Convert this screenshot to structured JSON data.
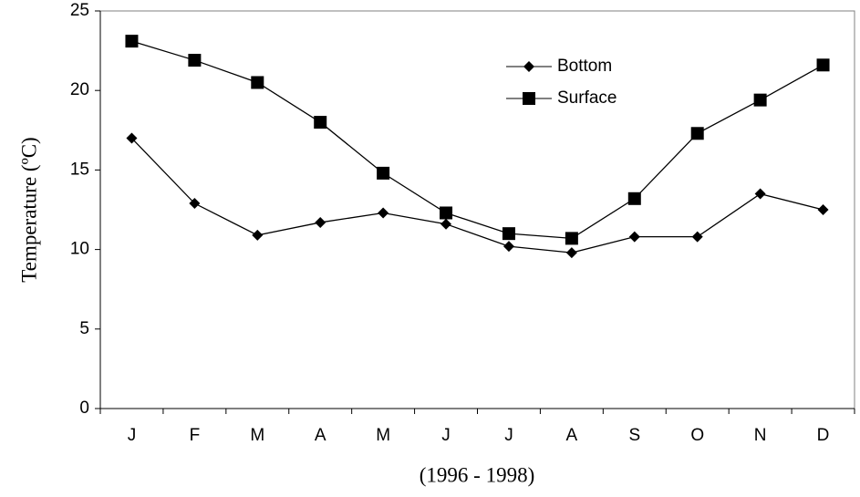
{
  "chart_data": {
    "type": "line",
    "xlabel": "(1996 - 1998)",
    "ylabel": "Temperature (ºC)",
    "categories": [
      "J",
      "F",
      "M",
      "A",
      "M",
      "J",
      "J",
      "A",
      "S",
      "O",
      "N",
      "D"
    ],
    "series": [
      {
        "name": "Bottom",
        "color": "#000000",
        "marker": "diamond",
        "values": [
          17.0,
          12.9,
          10.9,
          11.7,
          12.3,
          11.6,
          10.2,
          9.8,
          10.8,
          10.8,
          13.5,
          12.5
        ]
      },
      {
        "name": "Surface",
        "color": "#000000",
        "marker": "square",
        "values": [
          23.1,
          21.9,
          20.5,
          18.0,
          14.8,
          12.3,
          11.0,
          10.7,
          13.2,
          17.3,
          19.4,
          21.6
        ]
      }
    ],
    "ylim": [
      0,
      25
    ],
    "yticks": [
      0,
      5,
      10,
      15,
      20,
      25
    ],
    "grid": false,
    "legend": "upper right"
  }
}
